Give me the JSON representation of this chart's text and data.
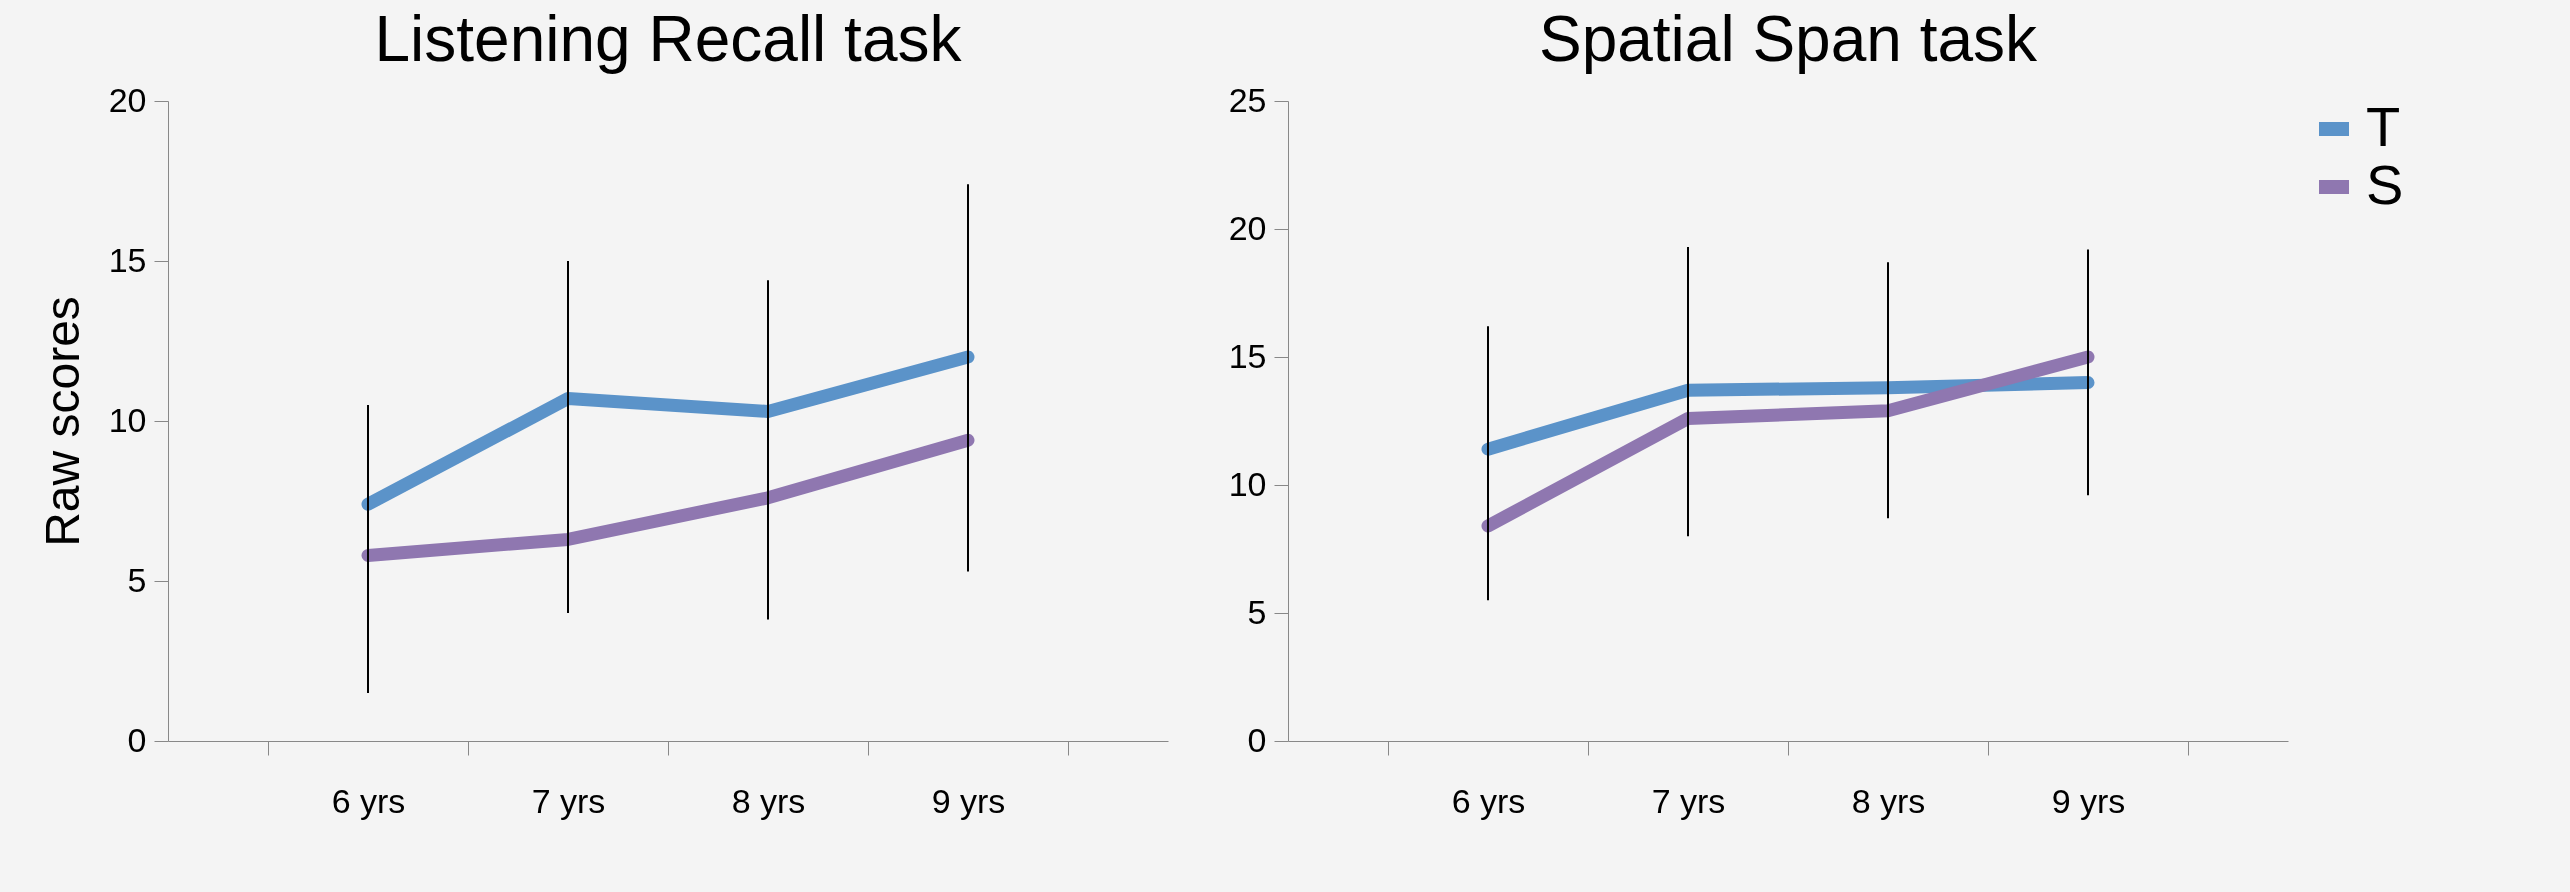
{
  "chart_data": [
    {
      "type": "line",
      "title": "Listening Recall task",
      "ylabel": "Raw scores",
      "categories": [
        "6 yrs",
        "7 yrs",
        "8 yrs",
        "9 yrs"
      ],
      "ylim": [
        0,
        20
      ],
      "yticks": [
        0,
        5,
        10,
        15,
        20
      ],
      "grid": false,
      "legend": false,
      "series": [
        {
          "color": "#5b93c9",
          "values": [
            7.4,
            10.7,
            10.3,
            12.0
          ],
          "errors": [
            [
              1.5,
              10.5
            ],
            [
              4.0,
              15.0
            ],
            [
              3.8,
              14.4
            ],
            [
              5.3,
              17.4
            ]
          ]
        },
        {
          "color": "#8f77b0",
          "values": [
            5.8,
            6.3,
            7.6,
            9.4
          ]
        }
      ]
    },
    {
      "type": "line",
      "title": "Spatial Span task",
      "categories": [
        "6 yrs",
        "7 yrs",
        "8 yrs",
        "9 yrs"
      ],
      "ylim": [
        0,
        25
      ],
      "yticks": [
        0,
        5,
        10,
        15,
        20,
        25
      ],
      "grid": false,
      "legend": "right",
      "series": [
        {
          "name": "T",
          "color": "#5b93c9",
          "values": [
            11.4,
            13.7,
            13.8,
            14.0
          ],
          "errors": [
            [
              5.5,
              16.2
            ],
            [
              8.0,
              19.3
            ],
            [
              8.7,
              18.7
            ],
            [
              9.6,
              19.2
            ]
          ]
        },
        {
          "name": "S",
          "color": "#8f77b0",
          "values": [
            8.4,
            12.6,
            12.9,
            15.0
          ]
        }
      ]
    }
  ]
}
